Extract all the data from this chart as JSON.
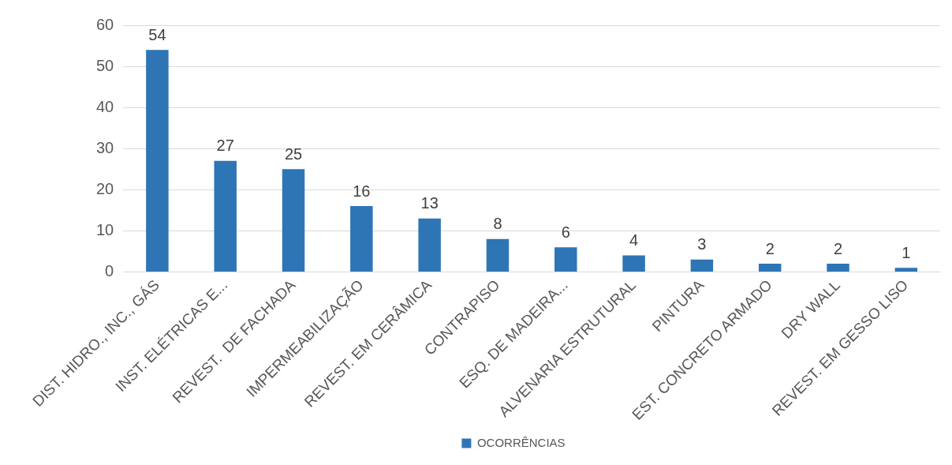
{
  "chart_data": {
    "type": "bar",
    "categories": [
      "DIST. HIDRO., INC., GÁS",
      "INST. ELÉTRICAS E...",
      "REVEST.  DE FACHADA",
      "IMPERMEABILIZAÇÃO",
      "REVEST. EM CERÂMICA",
      "CONTRAPISO",
      "ESQ. DE MADEIRA...",
      "ALVENARIA ESTRUTURAL",
      "PINTURA",
      "EST. CONCRETO ARMADO",
      "DRY WALL",
      "REVEST. EM GESSO LISO"
    ],
    "series": [
      {
        "name": "OCORRÊNCIAS",
        "color": "#2e75b6",
        "values": [
          54,
          27,
          25,
          16,
          13,
          8,
          6,
          4,
          3,
          2,
          2,
          1
        ]
      }
    ],
    "ylim": [
      0,
      60
    ],
    "yticks": [
      0,
      10,
      20,
      30,
      40,
      50,
      60
    ],
    "grid": "y",
    "legend": "bottom",
    "data_labels": true
  }
}
